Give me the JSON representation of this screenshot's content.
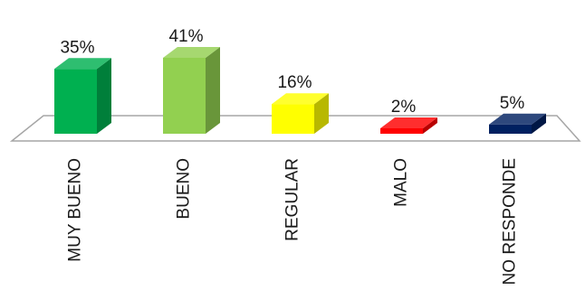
{
  "chart_data": {
    "type": "bar",
    "categories": [
      "MUY BUENO",
      "BUENO",
      "REGULAR",
      "MALO",
      "NO RESPONDE"
    ],
    "values": [
      35,
      41,
      16,
      2,
      5
    ],
    "value_labels": [
      "35%",
      "41%",
      "16%",
      "2%",
      "5%"
    ],
    "unit": "%",
    "colors": [
      "#00b050",
      "#92d050",
      "#ffff00",
      "#ff0000",
      "#002060"
    ],
    "grid": false,
    "legend": "none",
    "style": "3d-column"
  }
}
